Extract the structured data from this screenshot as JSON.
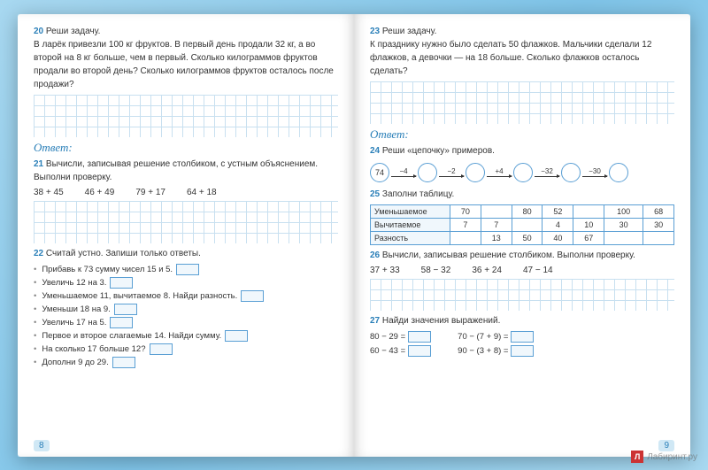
{
  "left": {
    "t20": {
      "num": "20",
      "title": "Реши задачу.",
      "text": "В ларёк привезли 100 кг фруктов. В первый день продали 32 кг, а во второй на 8 кг больше, чем в первый. Сколько килограммов фруктов продали во второй день? Сколько килограммов фруктов осталось после продажи?"
    },
    "answer": "Ответ:",
    "t21": {
      "num": "21",
      "text": "Вычисли, записывая решение столбиком, с устным объяснением. Выполни проверку.",
      "items": [
        "38 + 45",
        "46 + 49",
        "79 + 17",
        "64 + 18"
      ]
    },
    "t22": {
      "num": "22",
      "text": "Считай устно. Запиши только ответы.",
      "items": [
        "Прибавь к 73 сумму чисел 15 и 5.",
        "Увеличь 12 на 3.",
        "Уменьшаемое 11, вычитаемое 8. Найди разность.",
        "Уменьши 18 на 9.",
        "Увеличь 17 на 5.",
        "Первое и второе слагаемые 14. Найди сумму.",
        "На сколько 17 больше 12?",
        "Дополни 9 до 29."
      ]
    },
    "pagenum": "8"
  },
  "right": {
    "t23": {
      "num": "23",
      "title": "Реши задачу.",
      "text": "К празднику нужно было сделать 50 флажков. Мальчики сделали 12 флажков, а девочки — на 18 больше. Сколько флажков осталось сделать?"
    },
    "answer": "Ответ:",
    "t24": {
      "num": "24",
      "text": "Реши «цепочку» примеров.",
      "start": "74",
      "ops": [
        "−4",
        "−2",
        "+4",
        "−32",
        "−30"
      ]
    },
    "t25": {
      "num": "25",
      "text": "Заполни таблицу.",
      "rows": [
        {
          "label": "Уменьшаемое",
          "cells": [
            "70",
            "",
            "80",
            "52",
            "",
            "100",
            "68"
          ]
        },
        {
          "label": "Вычитаемое",
          "cells": [
            "7",
            "7",
            "",
            "4",
            "10",
            "30",
            "30"
          ]
        },
        {
          "label": "Разность",
          "cells": [
            "",
            "13",
            "50",
            "40",
            "67",
            "",
            ""
          ]
        }
      ]
    },
    "t26": {
      "num": "26",
      "text": "Вычисли, записывая решение столбиком. Выполни проверку.",
      "items": [
        "37 + 33",
        "58 − 32",
        "36 + 24",
        "47 − 14"
      ]
    },
    "t27": {
      "num": "27",
      "text": "Найди значения выражений.",
      "rows": [
        [
          "80 − 29 =",
          "70 − (7 + 9) ="
        ],
        [
          "60 − 43 =",
          "90 − (3 + 8) ="
        ]
      ]
    },
    "pagenum": "9"
  },
  "watermark": "Лабиринт.ру"
}
